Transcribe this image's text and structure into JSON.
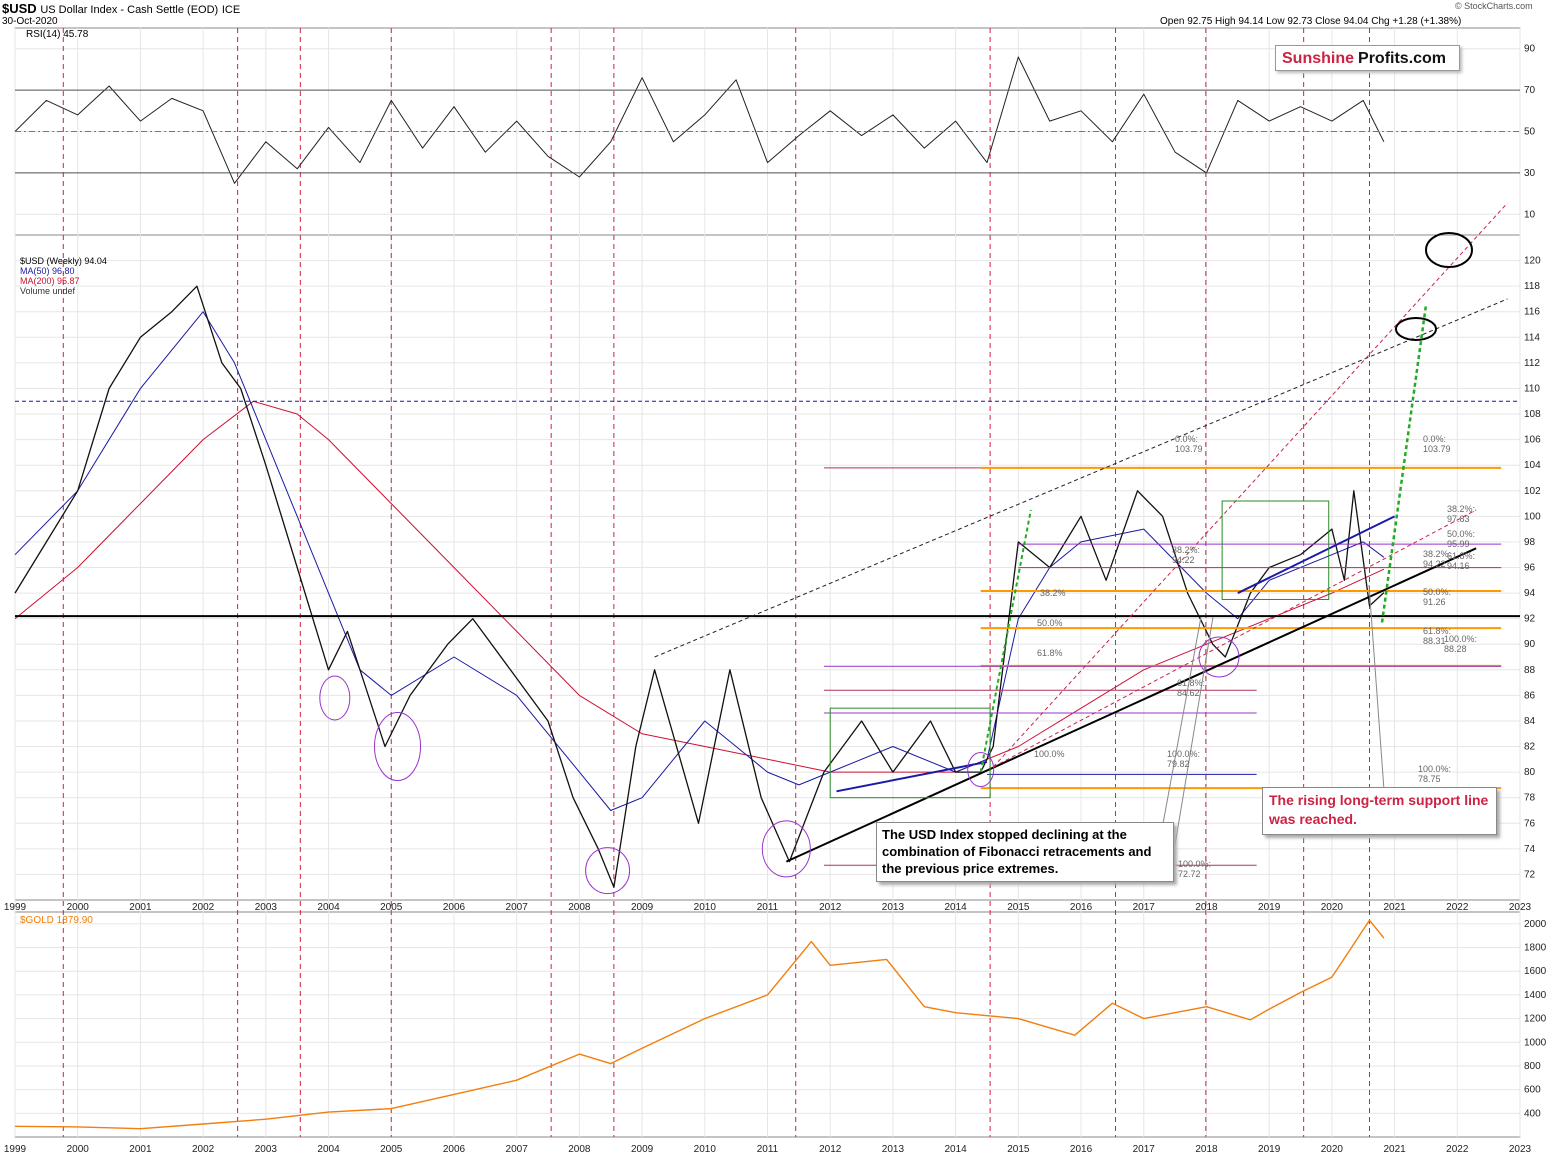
{
  "header": {
    "symbol": "$USD",
    "name": "US Dollar Index - Cash Settle (EOD)",
    "exchange": "ICE",
    "date": "30-Oct-2020",
    "ohlc": "Open 92.75  High 94.14  Low 92.73  Close 94.04  Chg +1.28 (+1.38%)",
    "credit": "© StockCharts.com"
  },
  "logo": {
    "part1": "Sunshine",
    "part2": "Profits.com"
  },
  "colors": {
    "price_up": "#000000",
    "price_down": "#cc0033",
    "ma50": "#1a1aa6",
    "ma200": "#cc1133",
    "gold": "#f07f0e",
    "fib": "#ff9900",
    "grid": "#e6e6e6",
    "cycle": "#cc2244",
    "annotation_red": "#cc2244",
    "trend_green": "#22aa22",
    "ellipse": "#9933cc"
  },
  "panels": {
    "rsi": {
      "label": "RSI(14) 45.78"
    },
    "price": {
      "legend": [
        "$USD (Weekly) 94.04",
        "MA(50) 96.80",
        "MA(200) 95.87",
        "Volume undef"
      ]
    },
    "gold": {
      "label": "$GOLD 1879.90"
    }
  },
  "annotations": {
    "fib_text": "The USD Index stopped declining at the combination of Fibonacci retracements and the previous price extremes.",
    "support_text": "The rising long-term support line was reached."
  },
  "fib_labels": {
    "l1": "0.0%: 103.79",
    "l2": "38.2%: 97.83",
    "l3": "50.0%: 95.99",
    "l4": "61.8%: 94.16",
    "l5": "38.2%: 94.22",
    "l6": "50.0%: 91.26",
    "l7": "61.8%: 88.31",
    "l8": "100.0%: 88.28",
    "l9": "61.8%: 84.62",
    "l10": "100.0%: 79.82",
    "l11": "100.0%: 78.75",
    "l12": "100.0%: 72.72",
    "l13": "50.0%",
    "l14": "61.8%",
    "l15": "100.0%",
    "l16": "38.2%",
    "l17": "0.0%: 103.79",
    "l18": "38.2%: 94.22"
  },
  "chart_data": {
    "type": "line",
    "title": "$USD US Dollar Index - Cash Settle (EOD) ICE",
    "x_ticks": [
      "1999",
      "2000",
      "2001",
      "2002",
      "2003",
      "2004",
      "2005",
      "2006",
      "2007",
      "2008",
      "2009",
      "2010",
      "2011",
      "2012",
      "2013",
      "2014",
      "2015",
      "2016",
      "2017",
      "2018",
      "2019",
      "2020",
      "2021",
      "2022",
      "2023"
    ],
    "rsi": {
      "ylim": [
        0,
        100
      ],
      "y_ticks": [
        10,
        30,
        50,
        70,
        90
      ],
      "x": [
        1999.0,
        1999.5,
        2000.0,
        2000.5,
        2001.0,
        2001.5,
        2002.0,
        2002.5,
        2003.0,
        2003.5,
        2004.0,
        2004.5,
        2005.0,
        2005.5,
        2006.0,
        2006.5,
        2007.0,
        2007.5,
        2008.0,
        2008.5,
        2009.0,
        2009.5,
        2010.0,
        2010.5,
        2011.0,
        2011.5,
        2012.0,
        2012.5,
        2013.0,
        2013.5,
        2014.0,
        2014.5,
        2015.0,
        2015.5,
        2016.0,
        2016.5,
        2017.0,
        2017.5,
        2018.0,
        2018.5,
        2019.0,
        2019.5,
        2020.0,
        2020.5,
        2020.83
      ],
      "y": [
        50,
        65,
        58,
        72,
        55,
        66,
        60,
        25,
        45,
        32,
        52,
        35,
        65,
        42,
        62,
        40,
        55,
        38,
        28,
        45,
        76,
        45,
        58,
        75,
        35,
        48,
        60,
        48,
        58,
        42,
        55,
        35,
        86,
        55,
        60,
        45,
        68,
        40,
        30,
        65,
        55,
        62,
        55,
        65,
        45
      ]
    },
    "price": {
      "ylim": [
        70,
        122
      ],
      "y_ticks": [
        72,
        74,
        76,
        78,
        80,
        82,
        84,
        86,
        88,
        90,
        92,
        94,
        96,
        98,
        100,
        102,
        104,
        106,
        108,
        110,
        112,
        114,
        116,
        118,
        120
      ],
      "series": [
        {
          "name": "$USD (Weekly) 94.04",
          "x": [
            1999.0,
            1999.5,
            2000.0,
            2000.5,
            2001.0,
            2001.5,
            2001.9,
            2002.3,
            2002.6,
            2003.0,
            2003.5,
            2004.0,
            2004.3,
            2004.9,
            2005.3,
            2005.9,
            2006.3,
            2006.9,
            2007.5,
            2007.9,
            2008.3,
            2008.55,
            2008.9,
            2009.2,
            2009.9,
            2010.4,
            2010.9,
            2011.35,
            2011.9,
            2012.5,
            2013.0,
            2013.6,
            2014.0,
            2014.4,
            2014.6,
            2015.0,
            2015.5,
            2016.0,
            2016.4,
            2016.9,
            2017.3,
            2017.7,
            2018.1,
            2018.3,
            2018.7,
            2019.0,
            2019.5,
            2020.0,
            2020.2,
            2020.35,
            2020.6,
            2020.83
          ],
          "y": [
            94,
            98,
            102,
            110,
            114,
            116,
            118,
            112,
            110,
            104,
            96,
            88,
            91,
            82,
            86,
            90,
            92,
            88,
            84,
            78,
            74,
            71,
            82,
            88,
            76,
            88,
            78,
            73,
            80,
            84,
            80,
            84,
            80,
            80,
            82,
            98,
            96,
            100,
            95,
            102,
            100,
            94,
            90,
            89,
            94,
            96,
            97,
            99,
            95,
            102,
            93,
            94.04
          ]
        },
        {
          "name": "MA(50) 96.80",
          "x": [
            1999.0,
            2000.0,
            2001.0,
            2002.0,
            2002.5,
            2003.0,
            2003.5,
            2004.0,
            2004.5,
            2005.0,
            2006.0,
            2007.0,
            2008.0,
            2008.5,
            2009.0,
            2010.0,
            2010.5,
            2011.0,
            2011.5,
            2012.0,
            2013.0,
            2014.0,
            2014.5,
            2015.0,
            2015.5,
            2016.0,
            2017.0,
            2018.0,
            2018.5,
            2019.0,
            2020.0,
            2020.5,
            2020.83
          ],
          "y": [
            97,
            102,
            110,
            116,
            112,
            106,
            100,
            94,
            88,
            86,
            89,
            86,
            80,
            77,
            78,
            84,
            82,
            80,
            79,
            80,
            82,
            80,
            81,
            92,
            96,
            98,
            99,
            94,
            92,
            95,
            97,
            98,
            96.8
          ]
        },
        {
          "name": "MA(200) 95.87",
          "x": [
            1999.0,
            2000.0,
            2001.0,
            2002.0,
            2002.8,
            2003.5,
            2004.0,
            2005.0,
            2006.0,
            2007.0,
            2008.0,
            2009.0,
            2010.0,
            2011.0,
            2012.0,
            2013.0,
            2014.0,
            2015.0,
            2016.0,
            2017.0,
            2018.0,
            2019.0,
            2020.0,
            2020.83
          ],
          "y": [
            92,
            96,
            101,
            106,
            109,
            108,
            106,
            101,
            96,
            91,
            86,
            83,
            82,
            81,
            80,
            80,
            80,
            82,
            85,
            88,
            90,
            92,
            94,
            95.87
          ]
        }
      ],
      "horizontal_lines": [
        92.2,
        109.0
      ]
    },
    "gold": {
      "ylim": [
        200,
        2100
      ],
      "y_ticks": [
        400,
        600,
        800,
        1000,
        1200,
        1400,
        1600,
        1800,
        2000
      ],
      "x": [
        1999.0,
        2000.0,
        2001.0,
        2002.0,
        2003.0,
        2004.0,
        2005.0,
        2006.0,
        2007.0,
        2008.0,
        2008.5,
        2009.0,
        2010.0,
        2011.0,
        2011.7,
        2012.0,
        2012.9,
        2013.5,
        2014.0,
        2015.0,
        2015.9,
        2016.5,
        2017.0,
        2018.0,
        2018.7,
        2019.0,
        2019.5,
        2020.0,
        2020.6,
        2020.83
      ],
      "y": [
        290,
        285,
        270,
        310,
        350,
        410,
        440,
        560,
        680,
        900,
        820,
        950,
        1200,
        1400,
        1850,
        1650,
        1700,
        1300,
        1250,
        1200,
        1060,
        1330,
        1200,
        1300,
        1190,
        1280,
        1420,
        1550,
        2030,
        1879.9
      ]
    }
  }
}
